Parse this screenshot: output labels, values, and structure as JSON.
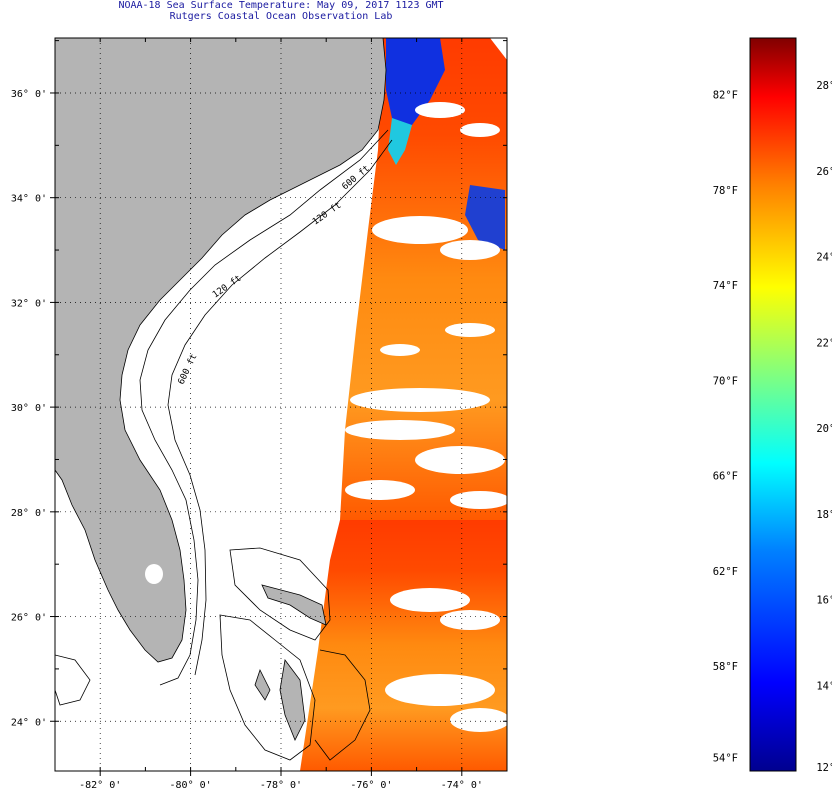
{
  "header": {
    "title": "NOAA-18 Sea Surface Temperature:  May 09, 2017 1123 GMT",
    "subtitle": "Rutgers Coastal Ocean Observation Lab"
  },
  "map": {
    "lat_ticks": [
      "36° 0'",
      "34° 0'",
      "32° 0'",
      "30° 0'",
      "28° 0'",
      "26° 0'",
      "24° 0'"
    ],
    "lat_values": [
      36,
      34,
      32,
      30,
      28,
      26,
      24
    ],
    "lon_ticks": [
      "-82° 0'",
      "-80° 0'",
      "-78° 0'",
      "-76° 0'",
      "-74° 0'"
    ],
    "lon_values": [
      -82,
      -80,
      -78,
      -76,
      -74
    ],
    "lat_range": [
      23.05,
      37.05
    ],
    "lon_range": [
      -83.0,
      -73.0
    ],
    "contour_labels": [
      "120 ft",
      "600 ft",
      "120 ft",
      "600 ft"
    ],
    "colors": {
      "land": "#b4b4b4",
      "ocean": "#ffffff",
      "axis": "#000000"
    }
  },
  "colorbar": {
    "fahrenheit_labels": [
      "82°F",
      "78°F",
      "74°F",
      "70°F",
      "66°F",
      "62°F",
      "58°F",
      "54°F"
    ],
    "fahrenheit_values": [
      82,
      78,
      74,
      70,
      66,
      62,
      58,
      54
    ],
    "celsius_labels": [
      "28°C",
      "26°C",
      "24°C",
      "22°C",
      "20°C",
      "18°C",
      "16°C",
      "14°C",
      "12°C"
    ],
    "celsius_values": [
      28,
      26,
      24,
      22,
      20,
      18,
      16,
      14,
      12
    ],
    "range_c": [
      12,
      29.1
    ],
    "colormap": [
      "#00008f",
      "#0000ff",
      "#0080ff",
      "#00ffff",
      "#80ff80",
      "#ffff00",
      "#ff8000",
      "#ff0000",
      "#800000"
    ]
  }
}
